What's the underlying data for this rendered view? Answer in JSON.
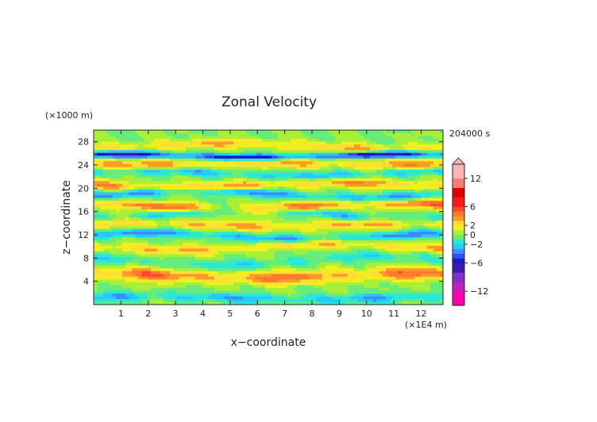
{
  "chart_data": {
    "type": "heatmap",
    "title": "Zonal Velocity",
    "xlabel": "x−coordinate",
    "ylabel": "z−coordinate",
    "x_unit": "(×1E4 m)",
    "y_unit": "(×1000 m)",
    "time_label": "204000 s",
    "xlim": [
      0,
      12.8
    ],
    "ylim": [
      0,
      30
    ],
    "x_ticks": [
      "1",
      "2",
      "3",
      "4",
      "5",
      "6",
      "7",
      "8",
      "9",
      "10",
      "11",
      "12"
    ],
    "x_tick_values": [
      1,
      2,
      3,
      4,
      5,
      6,
      7,
      8,
      9,
      10,
      11,
      12
    ],
    "y_ticks": [
      "4",
      "8",
      "12",
      "16",
      "20",
      "24",
      "28"
    ],
    "y_tick_values": [
      4,
      8,
      12,
      16,
      20,
      24,
      28
    ],
    "colorbar": {
      "range": [
        -15,
        15
      ],
      "tick_labels": [
        "12",
        "6",
        "2",
        "0",
        "−2",
        "−6",
        "−12"
      ],
      "tick_values": [
        12,
        6,
        2,
        0,
        -2,
        -6,
        -12
      ],
      "levels": [
        -15,
        -12,
        -10,
        -8,
        -6,
        -5,
        -4,
        -3,
        -2,
        -1,
        0,
        1,
        2,
        3,
        4,
        5,
        6,
        8,
        10,
        12,
        15
      ],
      "colors": [
        "#ff00aa",
        "#c020c0",
        "#8030c8",
        "#3c1cb0",
        "#1818c8",
        "#2a50f0",
        "#3c8cff",
        "#28c8ff",
        "#2ae8d2",
        "#66ec7a",
        "#a8f038",
        "#eef020",
        "#ffe030",
        "#ff9a28",
        "#ff7a2a",
        "#ff4a2a",
        "#ff1a1a",
        "#e00000",
        "#ff7a7a",
        "#ffb4b4"
      ]
    },
    "bands": [
      {
        "z": 1.2,
        "a": 0.3,
        "amp": -2.6,
        "w": 0.8
      },
      {
        "z": 5.0,
        "a": 0.4,
        "amp": 4.3,
        "w": 1.1
      },
      {
        "z": 7.5,
        "a": 0.8,
        "amp": -1.6,
        "w": 0.8
      },
      {
        "z": 10.0,
        "a": 0.6,
        "amp": 3.0,
        "w": 0.8
      },
      {
        "z": 11.8,
        "a": -0.6,
        "amp": -3.2,
        "w": 0.7
      },
      {
        "z": 13.8,
        "a": -0.3,
        "amp": 3.2,
        "w": 0.8
      },
      {
        "z": 15.6,
        "a": 0.9,
        "amp": -2.4,
        "w": 0.7
      },
      {
        "z": 17.0,
        "a": -0.5,
        "amp": 4.4,
        "w": 0.8
      },
      {
        "z": 19.0,
        "a": 0.7,
        "amp": -3.3,
        "w": 0.7
      },
      {
        "z": 20.6,
        "a": -0.4,
        "amp": 3.6,
        "w": 0.8
      },
      {
        "z": 22.6,
        "a": 0.5,
        "amp": -2.6,
        "w": 0.7
      },
      {
        "z": 24.3,
        "a": -0.2,
        "amp": 3.6,
        "w": 0.9
      },
      {
        "z": 25.6,
        "a": 0.3,
        "amp": -6.2,
        "w": 0.6
      },
      {
        "z": 27.3,
        "a": -0.5,
        "amp": 3.0,
        "w": 0.8
      }
    ]
  }
}
